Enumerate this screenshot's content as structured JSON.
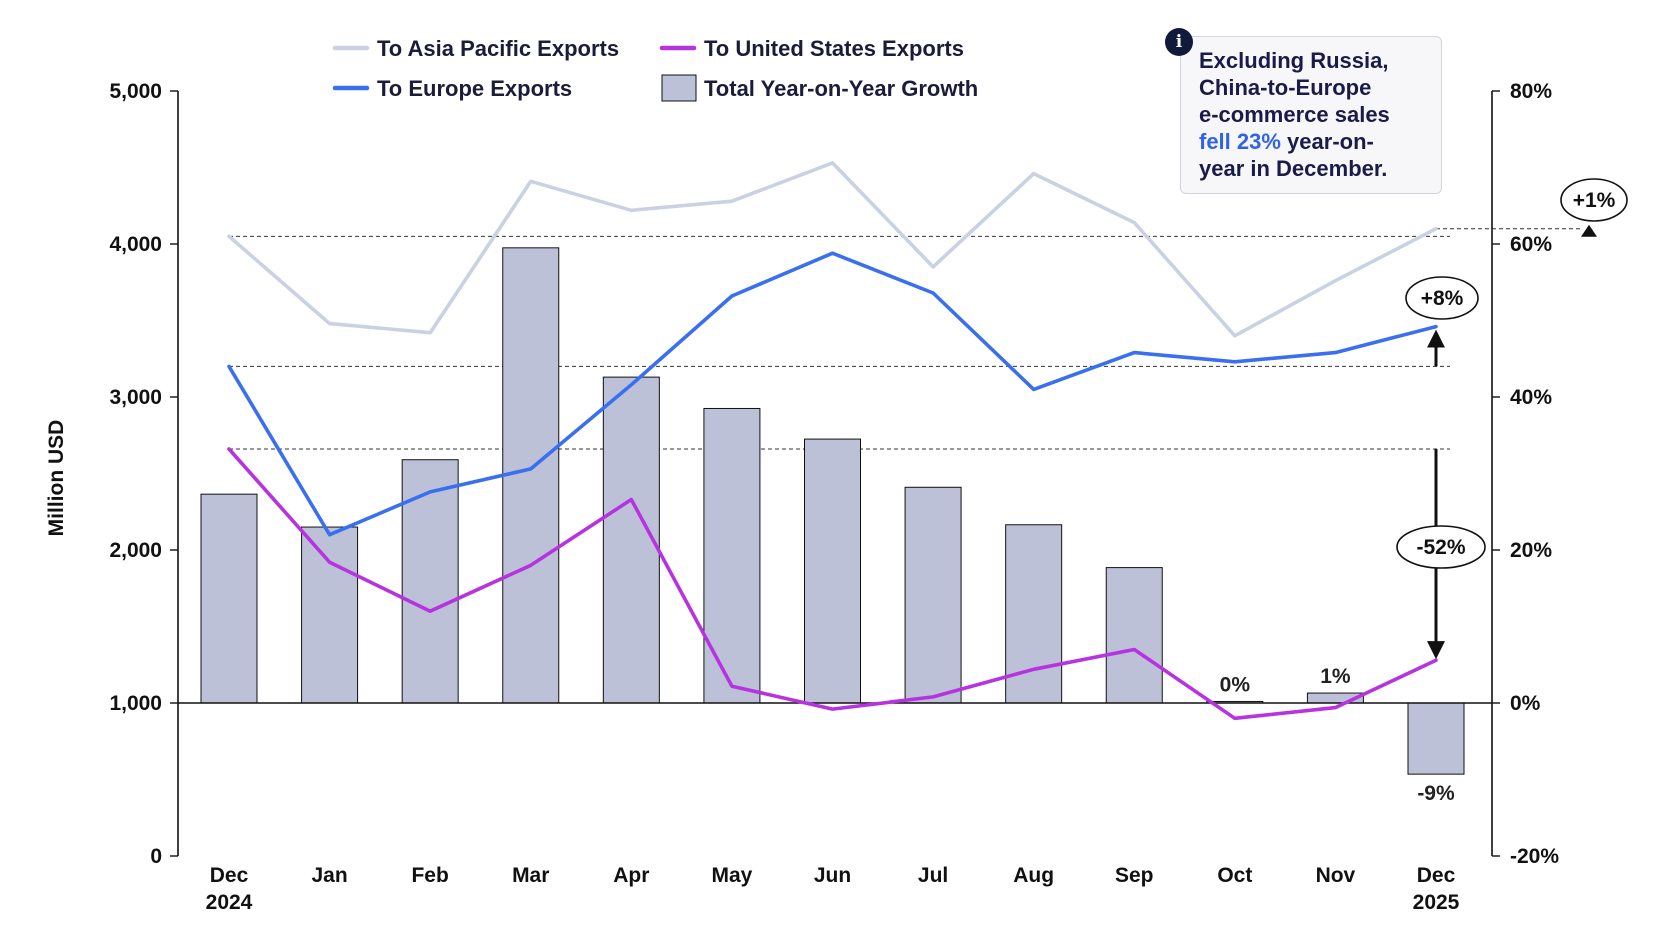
{
  "note": {
    "line1": "Excluding Russia,",
    "line2": "China-to-Europe",
    "line3": "e-commerce sales",
    "highlight": "fell 23%",
    "line4_rest": " year-on-",
    "line5": "year in December.",
    "badge": "i"
  },
  "colors": {
    "asia": "#c9d1e2",
    "europe": "#3a6ff0",
    "us": "#b833e0",
    "bar": "#bcc1d8",
    "bar_stroke": "#111111"
  },
  "chart_data": {
    "type": "bar+line",
    "ylabel": "Million USD",
    "categories": [
      [
        "Dec",
        "2024"
      ],
      [
        "Jan"
      ],
      [
        "Feb"
      ],
      [
        "Mar"
      ],
      [
        "Apr"
      ],
      [
        "May"
      ],
      [
        "Jun"
      ],
      [
        "Jul"
      ],
      [
        "Aug"
      ],
      [
        "Sep"
      ],
      [
        "Oct"
      ],
      [
        "Nov"
      ],
      [
        "Dec",
        "2025"
      ]
    ],
    "left_axis": {
      "min": 0,
      "max": 5000,
      "ticks": [
        "0",
        "1,000",
        "2,000",
        "3,000",
        "4,000",
        "5,000"
      ],
      "tick_values": [
        0,
        1000,
        2000,
        3000,
        4000,
        5000
      ]
    },
    "right_axis": {
      "min": -20,
      "max": 80,
      "ticks": [
        "-20%",
        "0%",
        "20%",
        "40%",
        "60%",
        "80%"
      ],
      "tick_values": [
        -20,
        0,
        20,
        40,
        60,
        80
      ]
    },
    "series": [
      {
        "name": "To Asia Pacific Exports",
        "type": "line",
        "axis": "left",
        "color": "#c9d1e2",
        "values": [
          4050,
          3480,
          3420,
          4410,
          4220,
          4280,
          4530,
          3850,
          4460,
          4140,
          3400,
          3760,
          4100
        ]
      },
      {
        "name": "To United States Exports",
        "type": "line",
        "axis": "left",
        "color": "#b833e0",
        "values": [
          2660,
          1920,
          1600,
          1900,
          2330,
          1110,
          960,
          1040,
          1220,
          1350,
          900,
          970,
          1280
        ]
      },
      {
        "name": "To Europe Exports",
        "type": "line",
        "axis": "left",
        "color": "#3a6ff0",
        "values": [
          3200,
          2100,
          2380,
          2530,
          3080,
          3660,
          3940,
          3680,
          3050,
          3290,
          3230,
          3290,
          3460
        ]
      },
      {
        "name": "Total Year-on-Year Growth",
        "type": "bar",
        "axis": "right",
        "color": "#bcc1d8",
        "values": [
          27.3,
          23.0,
          31.8,
          59.5,
          42.6,
          38.5,
          34.5,
          28.2,
          23.3,
          17.7,
          0.2,
          1.3,
          -9.3
        ]
      }
    ],
    "bar_labels": [
      {
        "index": 10,
        "text": "0%"
      },
      {
        "index": 11,
        "text": "1%"
      },
      {
        "index": 12,
        "text": "-9%"
      }
    ],
    "change_annotations": [
      {
        "series": "To Asia Pacific Exports",
        "from_value": 4050,
        "to_value": 4100,
        "label": "+1%"
      },
      {
        "series": "To Europe Exports",
        "from_value": 3200,
        "to_value": 3460,
        "label": "+8%"
      },
      {
        "series": "To United States Exports",
        "from_value": 2660,
        "to_value": 1280,
        "label": "-52%"
      }
    ]
  }
}
